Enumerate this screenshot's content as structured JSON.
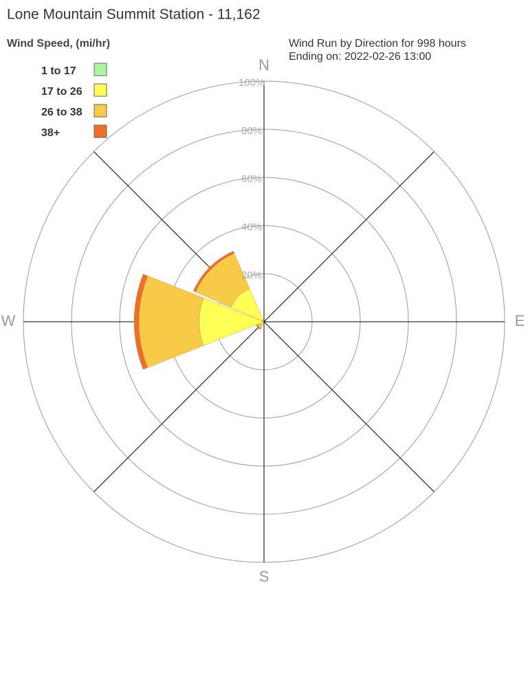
{
  "chart_data": {
    "type": "windrose",
    "title": "Lone Mountain Summit Station - 11,162",
    "legend_title": "Wind Speed, (mi/hr)",
    "subtitle": [
      "Wind Run by Direction for 998 hours",
      "Ending on: 2022-02-26 13:00"
    ],
    "categories": [
      "N",
      null,
      "E",
      null,
      "S",
      null,
      "W",
      null
    ],
    "series": [
      {
        "name": "1 to 17",
        "color": "#aef5a0",
        "values": [
          0,
          0,
          0,
          0,
          0,
          0.5,
          1,
          1
        ]
      },
      {
        "name": "17 to 26",
        "color": "#ffff55",
        "values": [
          0,
          0,
          0,
          0,
          0,
          1,
          26,
          14
        ]
      },
      {
        "name": "26 to 38",
        "color": "#f7cb48",
        "values": [
          0,
          0,
          0,
          0,
          0,
          1.5,
          25,
          16
        ]
      },
      {
        "name": "38+",
        "color": "#ee6e2a",
        "values": [
          0,
          0,
          0,
          0,
          0,
          0.5,
          2,
          1
        ]
      }
    ],
    "rlim": [
      0,
      100
    ],
    "rticks": [
      {
        "value": 20,
        "label": "20%"
      },
      {
        "value": 40,
        "label": "40%"
      },
      {
        "value": 60,
        "label": "60%"
      },
      {
        "value": 80,
        "label": "80%"
      },
      {
        "value": 100,
        "label": "100%"
      }
    ]
  }
}
